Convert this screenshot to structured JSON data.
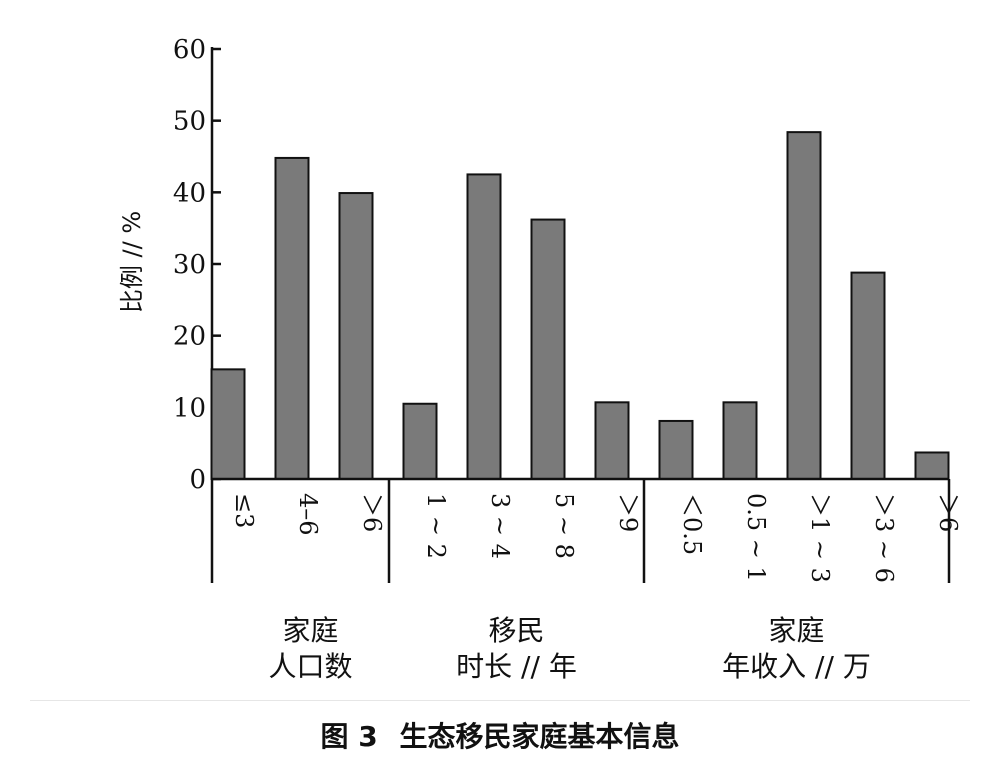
{
  "caption": {
    "label": "图 3",
    "title": "生态移民家庭基本信息"
  },
  "chart_data": {
    "type": "bar",
    "ylabel": "比例 // %",
    "ylim": [
      0,
      60
    ],
    "yticks": [
      0,
      10,
      20,
      30,
      40,
      50,
      60
    ],
    "bar_color": "#7a7a7a",
    "grid": false,
    "groups": [
      {
        "label_lines": [
          "家庭",
          "人口数"
        ],
        "categories": [
          "≤3",
          "4–6",
          "＞6"
        ],
        "values": [
          15.3,
          44.8,
          39.9
        ]
      },
      {
        "label_lines": [
          "移民",
          "时长 // 年"
        ],
        "categories": [
          "1 ~ 2",
          "3 ~ 4",
          "5 ~ 8",
          "＞9"
        ],
        "values": [
          10.5,
          42.5,
          36.2,
          10.7
        ]
      },
      {
        "label_lines": [
          "家庭",
          "年收入 // 万"
        ],
        "categories": [
          "＜0.5",
          "0.5 ~ 1",
          "＞1 ~ 3",
          "＞3 ~ 6",
          "＞6"
        ],
        "values": [
          8.1,
          10.7,
          48.4,
          28.8,
          3.7
        ]
      }
    ]
  }
}
